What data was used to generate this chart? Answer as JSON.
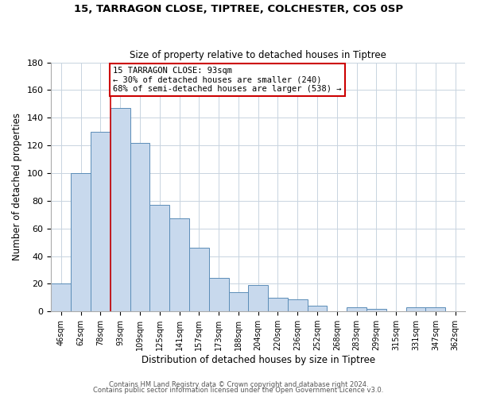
{
  "title1": "15, TARRAGON CLOSE, TIPTREE, COLCHESTER, CO5 0SP",
  "title2": "Size of property relative to detached houses in Tiptree",
  "xlabel": "Distribution of detached houses by size in Tiptree",
  "ylabel": "Number of detached properties",
  "bar_labels": [
    "46sqm",
    "62sqm",
    "78sqm",
    "93sqm",
    "109sqm",
    "125sqm",
    "141sqm",
    "157sqm",
    "173sqm",
    "188sqm",
    "204sqm",
    "220sqm",
    "236sqm",
    "252sqm",
    "268sqm",
    "283sqm",
    "299sqm",
    "315sqm",
    "331sqm",
    "347sqm",
    "362sqm"
  ],
  "bar_values": [
    20,
    100,
    130,
    147,
    122,
    77,
    67,
    46,
    24,
    14,
    19,
    10,
    9,
    4,
    0,
    3,
    2,
    0,
    3,
    3,
    0
  ],
  "bar_color": "#c8d9ed",
  "bar_edge_color": "#5b8db8",
  "vline_x_index": 3,
  "vline_color": "#cc0000",
  "ylim": [
    0,
    180
  ],
  "yticks": [
    0,
    20,
    40,
    60,
    80,
    100,
    120,
    140,
    160,
    180
  ],
  "annotation_title": "15 TARRAGON CLOSE: 93sqm",
  "annotation_line1": "← 30% of detached houses are smaller (240)",
  "annotation_line2": "68% of semi-detached houses are larger (538) →",
  "annotation_box_color": "#cc0000",
  "footer1": "Contains HM Land Registry data © Crown copyright and database right 2024.",
  "footer2": "Contains public sector information licensed under the Open Government Licence v3.0.",
  "bg_color": "#ffffff",
  "plot_bg": "#ffffff",
  "grid_color": "#c8d4e0"
}
